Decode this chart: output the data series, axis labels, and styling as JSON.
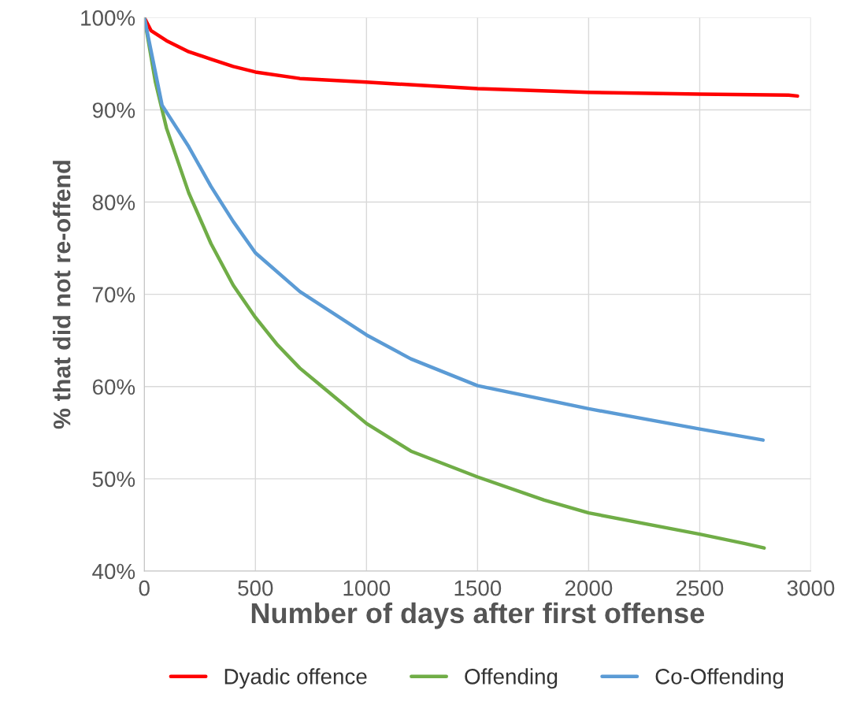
{
  "chart_data": {
    "type": "line",
    "xlabel": "Number of days after first offense",
    "ylabel": "% that did not re-offend",
    "xlim": [
      0,
      3000
    ],
    "xticks": [
      0,
      500,
      1000,
      1500,
      2000,
      2500,
      3000
    ],
    "ylim": [
      40,
      100
    ],
    "yticks": [
      {
        "value": 40,
        "label": "40%"
      },
      {
        "value": 50,
        "label": "50%"
      },
      {
        "value": 60,
        "label": "60%"
      },
      {
        "value": 70,
        "label": "70%"
      },
      {
        "value": 80,
        "label": "80%"
      },
      {
        "value": 90,
        "label": "90%"
      },
      {
        "value": 100,
        "label": "100%"
      }
    ],
    "grid": true,
    "legend": "bottom",
    "line_style": "solid",
    "marker": "none",
    "series": [
      {
        "name": "Dyadic offence",
        "color": "#ff0000",
        "x": [
          0,
          30,
          100,
          200,
          300,
          400,
          500,
          700,
          1000,
          1500,
          2000,
          2500,
          2900,
          2940
        ],
        "values": [
          100,
          98.6,
          97.5,
          96.3,
          95.5,
          94.7,
          94.1,
          93.4,
          93.0,
          92.3,
          91.9,
          91.7,
          91.6,
          91.5
        ]
      },
      {
        "name": "Offending",
        "color": "#70ad47",
        "x": [
          0,
          50,
          100,
          200,
          300,
          400,
          500,
          600,
          700,
          800,
          1000,
          1200,
          1500,
          1800,
          2000,
          2500,
          2700,
          2790
        ],
        "values": [
          100,
          93,
          88,
          81,
          75.5,
          71,
          67.5,
          64.5,
          62,
          60,
          56,
          53,
          50.2,
          47.7,
          46.3,
          44,
          43,
          42.5
        ]
      },
      {
        "name": "Co-Offending",
        "color": "#5b9bd5",
        "x": [
          0,
          80,
          200,
          300,
          400,
          500,
          700,
          1000,
          1200,
          1500,
          2000,
          2500,
          2785
        ],
        "values": [
          100,
          90.5,
          86,
          81.7,
          77.9,
          74.5,
          70.3,
          65.6,
          63,
          60.1,
          57.6,
          55.4,
          54.2
        ]
      }
    ]
  }
}
